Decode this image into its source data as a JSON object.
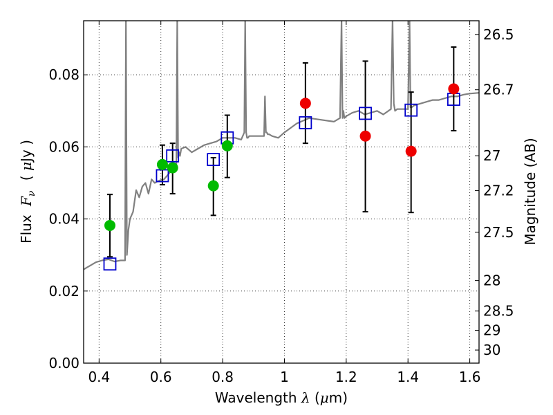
{
  "chart_data": {
    "type": "scatter",
    "xlabel_prefix": "Wavelength",
    "xlabel_math": "λ",
    "xlabel_unit": "(",
    "xlabel_unit_mu": "μ",
    "xlabel_unit_tail": "m)",
    "ylabel_prefix": "Flux",
    "ylabel_math": "F",
    "ylabel_sub": "ν",
    "ylabel_unit_open": "(",
    "ylabel_unit_mu": "μ",
    "ylabel_unit_tail": "Jy )",
    "ylabel_right": "Magnitude (AB)",
    "xlim": [
      0.35,
      1.63
    ],
    "ylim": [
      0.0,
      0.095
    ],
    "x_ticks": [
      0.4,
      0.6,
      0.8,
      1.0,
      1.2,
      1.4,
      1.6
    ],
    "x_tick_labels": [
      "0.4",
      "0.6",
      "0.8",
      "1",
      "1.2",
      "1.4",
      "1.6"
    ],
    "y_ticks": [
      0.0,
      0.02,
      0.04,
      0.06,
      0.08
    ],
    "y_tick_labels": [
      "0.00",
      "0.02",
      "0.04",
      "0.06",
      "0.08"
    ],
    "right_ticks": [
      {
        "mag": 26.5,
        "label": "26.5"
      },
      {
        "mag": 26.7,
        "label": "26.7"
      },
      {
        "mag": 27.0,
        "label": "27"
      },
      {
        "mag": 27.2,
        "label": "27.2"
      },
      {
        "mag": 27.5,
        "label": "27.5"
      },
      {
        "mag": 28.0,
        "label": "28"
      },
      {
        "mag": 28.5,
        "label": "28.5"
      },
      {
        "mag": 29.0,
        "label": "29"
      },
      {
        "mag": 30.0,
        "label": "30"
      }
    ],
    "grid": true,
    "colors": {
      "model": "#808080",
      "model_points": "#0000cc",
      "green": "#00bb00",
      "red": "#ee0000",
      "errorbar": "#000000"
    },
    "series": [
      {
        "name": "model spectrum",
        "kind": "line",
        "x": [
          0.35,
          0.37,
          0.39,
          0.41,
          0.43,
          0.45,
          0.47,
          0.484,
          0.487,
          0.49,
          0.493,
          0.495,
          0.5,
          0.51,
          0.52,
          0.53,
          0.54,
          0.55,
          0.56,
          0.57,
          0.58,
          0.59,
          0.6,
          0.61,
          0.62,
          0.63,
          0.64,
          0.65,
          0.653,
          0.656,
          0.659,
          0.662,
          0.666,
          0.68,
          0.7,
          0.72,
          0.74,
          0.76,
          0.78,
          0.8,
          0.82,
          0.84,
          0.86,
          0.87,
          0.873,
          0.876,
          0.879,
          0.882,
          0.886,
          0.9,
          0.92,
          0.934,
          0.937,
          0.94,
          0.943,
          0.946,
          0.95,
          0.96,
          0.98,
          1.0,
          1.04,
          1.08,
          1.12,
          1.16,
          1.18,
          1.185,
          1.188,
          1.191,
          1.194,
          1.2,
          1.22,
          1.24,
          1.26,
          1.28,
          1.3,
          1.32,
          1.345,
          1.35,
          1.354,
          1.358,
          1.365,
          1.38,
          1.4,
          1.405,
          1.408,
          1.412,
          1.42,
          1.44,
          1.46,
          1.48,
          1.5,
          1.52,
          1.54,
          1.56,
          1.58,
          1.6,
          1.63
        ],
        "y": [
          0.026,
          0.027,
          0.028,
          0.0285,
          0.0288,
          0.0282,
          0.0285,
          0.0285,
          0.095,
          0.03,
          0.034,
          0.037,
          0.04,
          0.042,
          0.048,
          0.046,
          0.049,
          0.05,
          0.047,
          0.051,
          0.05,
          0.0505,
          0.0508,
          0.051,
          0.052,
          0.053,
          0.0535,
          0.054,
          0.095,
          0.057,
          0.0585,
          0.0575,
          0.0595,
          0.06,
          0.0585,
          0.0595,
          0.0605,
          0.061,
          0.0615,
          0.0625,
          0.0625,
          0.0625,
          0.062,
          0.064,
          0.095,
          0.064,
          0.0625,
          0.0625,
          0.063,
          0.063,
          0.063,
          0.063,
          0.074,
          0.064,
          0.064,
          0.0635,
          0.0635,
          0.063,
          0.0625,
          0.064,
          0.0665,
          0.068,
          0.0675,
          0.067,
          0.068,
          0.095,
          0.068,
          0.07,
          0.068,
          0.0685,
          0.0695,
          0.07,
          0.069,
          0.0695,
          0.07,
          0.069,
          0.0705,
          0.095,
          0.072,
          0.07,
          0.0705,
          0.0705,
          0.0705,
          0.095,
          0.071,
          0.071,
          0.0715,
          0.072,
          0.0725,
          0.073,
          0.073,
          0.0735,
          0.074,
          0.074,
          0.0745,
          0.0748,
          0.075
        ]
      },
      {
        "name": "model photometry",
        "kind": "open-square",
        "x": [
          0.435,
          0.605,
          0.638,
          0.77,
          0.815,
          1.068,
          1.262,
          1.41,
          1.548
        ],
        "y": [
          0.0275,
          0.052,
          0.0575,
          0.0565,
          0.0625,
          0.0667,
          0.0693,
          0.0702,
          0.0732
        ]
      },
      {
        "name": "green photometry",
        "kind": "filled-circle",
        "x": [
          0.435,
          0.605,
          0.638,
          0.77,
          0.815
        ],
        "y": [
          0.0382,
          0.0551,
          0.0542,
          0.0492,
          0.0603
        ],
        "yerr_low": [
          0.0295,
          0.0495,
          0.047,
          0.041,
          0.0515
        ],
        "yerr_high": [
          0.0468,
          0.0605,
          0.061,
          0.057,
          0.0688
        ]
      },
      {
        "name": "red photometry",
        "kind": "filled-circle",
        "x": [
          1.068,
          1.262,
          1.41,
          1.548
        ],
        "y": [
          0.0721,
          0.063,
          0.0588,
          0.0761
        ],
        "yerr_low": [
          0.061,
          0.042,
          0.0418,
          0.0645
        ],
        "yerr_high": [
          0.0833,
          0.0838,
          0.0752,
          0.0877
        ]
      }
    ]
  }
}
